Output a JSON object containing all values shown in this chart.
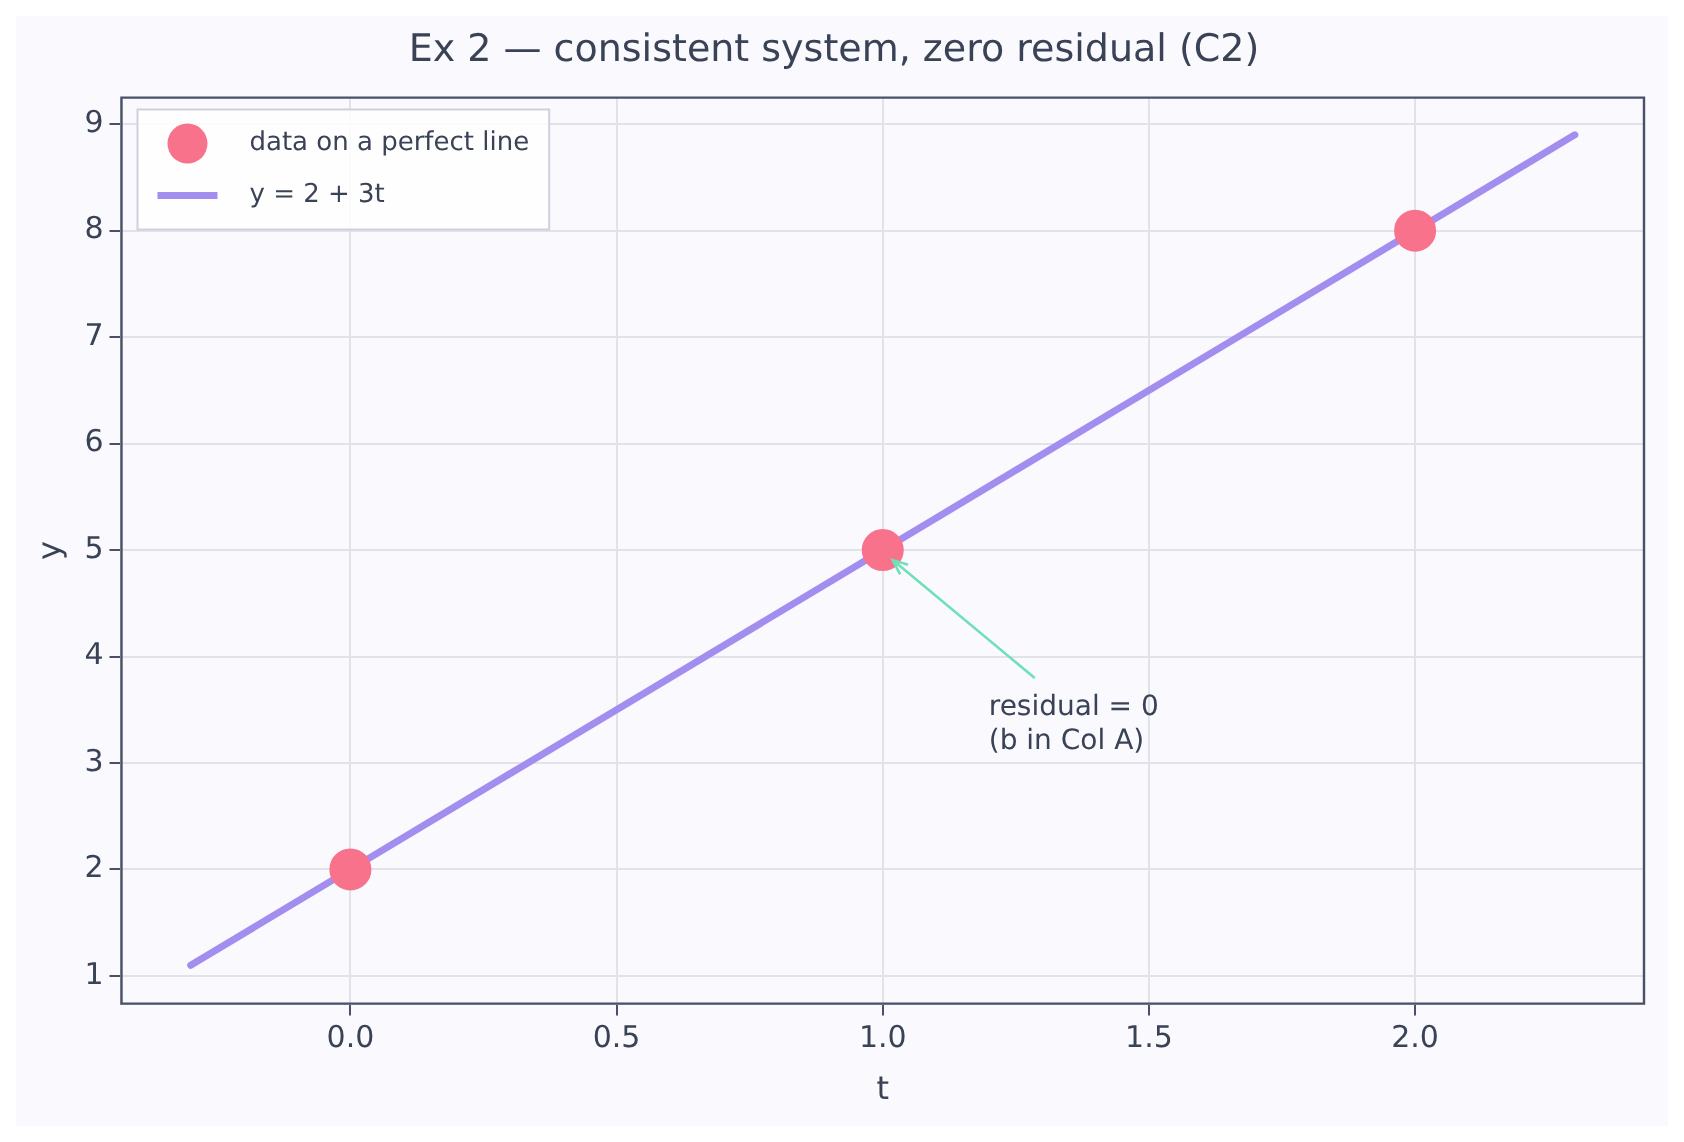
{
  "chart_data": {
    "type": "scatter",
    "title": "Ex 2 — consistent system, zero residual (C2)",
    "xlabel": "t",
    "ylabel": "y",
    "series": [
      {
        "name": "data on a perfect line",
        "color": "#f7728a",
        "x": [
          0,
          1,
          2
        ],
        "values": [
          2,
          5,
          8
        ],
        "marker": "circle"
      },
      {
        "name": "y = 2 + 3t",
        "type": "line",
        "color": "#a38ef0",
        "x": [
          -0.3,
          2.3
        ],
        "values": [
          1.1,
          8.9
        ],
        "marker": "none",
        "line_style": "solid"
      }
    ],
    "annotations": [
      {
        "text": "residual = 0\n(b in Col A)",
        "x": 1,
        "y": 5
      }
    ],
    "xlim": [
      -0.43,
      2.43
    ],
    "xticks": [
      {
        "value": 0,
        "label": "0.0"
      },
      {
        "value": 0.5,
        "label": "0.5"
      },
      {
        "value": 1,
        "label": "1.0"
      },
      {
        "value": 1.5,
        "label": "1.5"
      },
      {
        "value": 2,
        "label": "2.0"
      }
    ],
    "ylim": [
      0.74,
      9.25
    ],
    "yticks": [
      1,
      2,
      3,
      4,
      5,
      6,
      7,
      8,
      9
    ],
    "grid": true,
    "legend": "top left"
  }
}
